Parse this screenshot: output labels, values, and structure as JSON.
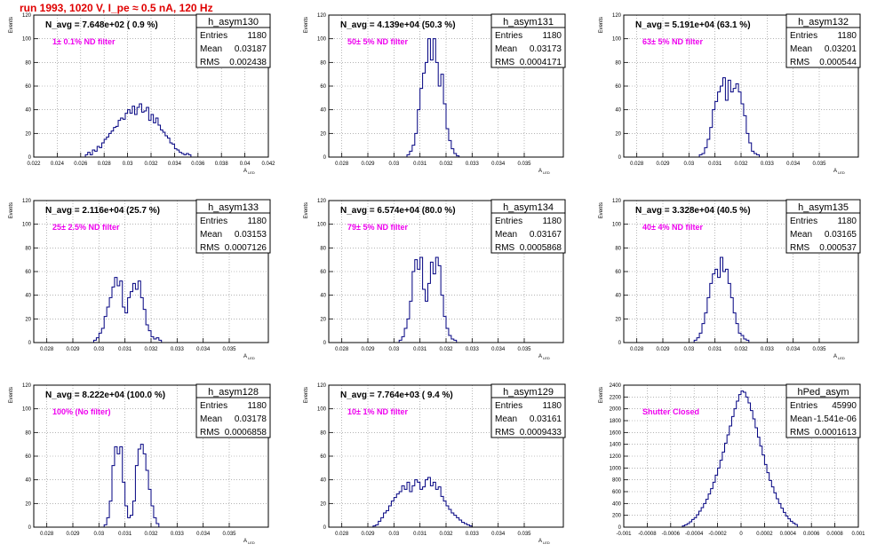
{
  "page": {
    "title": "run 1993,  1020 V, I_pe ≈ 0.5 nA, 120 Hz"
  },
  "colors": {
    "title": "#e00000",
    "histogram": "#000080",
    "annotation": "#ee00ee",
    "grid": "#888888"
  },
  "chart_data": [
    {
      "type": "histogram",
      "name": "h_asym130",
      "header": "N_avg = 7.648e+02 ( 0.9 %)",
      "note": "1± 0.1% ND filter",
      "stats": [
        [
          "Entries",
          "1180"
        ],
        [
          "Mean",
          "0.03187"
        ],
        [
          "RMS",
          "0.002438"
        ]
      ],
      "ylabel": "Events",
      "xlabel": "A_LED",
      "xlim": [
        0.022,
        0.042
      ],
      "ylim": [
        0,
        120
      ],
      "xticks": [
        0.022,
        0.024,
        0.026,
        0.028,
        0.03,
        0.032,
        0.034,
        0.036,
        0.038,
        0.04,
        0.042
      ],
      "xtick_labels": [
        "0.022",
        "0.024",
        "0.026",
        "0.028",
        "0.03",
        "0.032",
        "0.034",
        "0.036",
        "0.038",
        "0.04",
        "0.042"
      ],
      "yticks": [
        0,
        20,
        40,
        60,
        80,
        100,
        120
      ],
      "bin_start": 0.0264,
      "bin_width": 0.0002,
      "counts": [
        2,
        4,
        2,
        6,
        5,
        9,
        8,
        12,
        15,
        17,
        20,
        22,
        25,
        26,
        31,
        33,
        32,
        37,
        40,
        37,
        43,
        36,
        42,
        45,
        38,
        39,
        42,
        31,
        36,
        29,
        33,
        27,
        23,
        21,
        18,
        16,
        12,
        11,
        7,
        6,
        4,
        3,
        2,
        3,
        2
      ]
    },
    {
      "type": "histogram",
      "name": "h_asym131",
      "header": "N_avg = 4.139e+04 (50.3 %)",
      "note": "50± 5% ND filter",
      "stats": [
        [
          "Entries",
          "1180"
        ],
        [
          "Mean",
          "0.03173"
        ],
        [
          "RMS",
          "0.0004171"
        ]
      ],
      "ylabel": "Events",
      "xlabel": "A_LED",
      "xlim": [
        0.0275,
        0.0365
      ],
      "ylim": [
        0,
        120
      ],
      "xticks": [
        0.028,
        0.029,
        0.03,
        0.031,
        0.032,
        0.033,
        0.034,
        0.035
      ],
      "xtick_labels": [
        "0.028",
        "0.029",
        "0.03",
        "0.031",
        "0.032",
        "0.033",
        "0.034",
        "0.035"
      ],
      "yticks": [
        0,
        20,
        40,
        60,
        80,
        100,
        120
      ],
      "bin_start": 0.0305,
      "bin_width": 0.0001,
      "counts": [
        2,
        5,
        10,
        20,
        40,
        58,
        71,
        80,
        100,
        82,
        100,
        80,
        60,
        70,
        45,
        24,
        14,
        7,
        3,
        1
      ]
    },
    {
      "type": "histogram",
      "name": "h_asym132",
      "header": "N_avg = 5.191e+04 (63.1 %)",
      "note": "63± 5% ND filter",
      "stats": [
        [
          "Entries",
          "1180"
        ],
        [
          "Mean",
          "0.03201"
        ],
        [
          "RMS",
          "0.000544"
        ]
      ],
      "ylabel": "Events",
      "xlabel": "A_LED",
      "xlim": [
        0.0275,
        0.0365
      ],
      "ylim": [
        0,
        120
      ],
      "xticks": [
        0.028,
        0.029,
        0.03,
        0.031,
        0.032,
        0.033,
        0.034,
        0.035
      ],
      "xtick_labels": [
        "0.028",
        "0.029",
        "0.03",
        "0.031",
        "0.032",
        "0.033",
        "0.034",
        "0.035"
      ],
      "yticks": [
        0,
        20,
        40,
        60,
        80,
        100,
        120
      ],
      "bin_start": 0.0304,
      "bin_width": 0.0001,
      "counts": [
        2,
        3,
        8,
        15,
        25,
        40,
        47,
        55,
        60,
        67,
        48,
        65,
        55,
        58,
        62,
        55,
        45,
        35,
        20,
        12,
        5,
        3,
        2
      ]
    },
    {
      "type": "histogram",
      "name": "h_asym133",
      "header": "N_avg = 2.116e+04 (25.7 %)",
      "note": "25± 2.5% ND filter",
      "stats": [
        [
          "Entries",
          "1180"
        ],
        [
          "Mean",
          "0.03153"
        ],
        [
          "RMS",
          "0.0007126"
        ]
      ],
      "ylabel": "Events",
      "xlabel": "A_LED",
      "xlim": [
        0.0275,
        0.0365
      ],
      "ylim": [
        0,
        120
      ],
      "xticks": [
        0.028,
        0.029,
        0.03,
        0.031,
        0.032,
        0.033,
        0.034,
        0.035
      ],
      "xtick_labels": [
        "0.028",
        "0.029",
        "0.03",
        "0.031",
        "0.032",
        "0.033",
        "0.034",
        "0.035"
      ],
      "yticks": [
        0,
        20,
        40,
        60,
        80,
        100,
        120
      ],
      "bin_start": 0.0298,
      "bin_width": 0.0001,
      "counts": [
        2,
        4,
        8,
        12,
        22,
        30,
        38,
        47,
        55,
        48,
        52,
        30,
        25,
        38,
        43,
        50,
        45,
        52,
        38,
        28,
        15,
        10,
        5,
        3,
        4,
        2
      ]
    },
    {
      "type": "histogram",
      "name": "h_asym134",
      "header": "N_avg = 6.574e+04 (80.0 %)",
      "note": "79± 5% ND filter",
      "stats": [
        [
          "Entries",
          "1180"
        ],
        [
          "Mean",
          "0.03167"
        ],
        [
          "RMS",
          "0.0005868"
        ]
      ],
      "ylabel": "Events",
      "xlabel": "A_LED",
      "xlim": [
        0.0275,
        0.0365
      ],
      "ylim": [
        0,
        120
      ],
      "xticks": [
        0.028,
        0.029,
        0.03,
        0.031,
        0.032,
        0.033,
        0.034,
        0.035
      ],
      "xtick_labels": [
        "0.028",
        "0.029",
        "0.03",
        "0.031",
        "0.032",
        "0.033",
        "0.034",
        "0.035"
      ],
      "yticks": [
        0,
        20,
        40,
        60,
        80,
        100,
        120
      ],
      "bin_start": 0.0302,
      "bin_width": 0.0001,
      "counts": [
        2,
        5,
        12,
        20,
        35,
        60,
        70,
        62,
        72,
        45,
        35,
        50,
        68,
        58,
        72,
        65,
        40,
        22,
        12,
        6,
        3,
        2
      ]
    },
    {
      "type": "histogram",
      "name": "h_asym135",
      "header": "N_avg = 3.328e+04 (40.5 %)",
      "note": "40± 4% ND filter",
      "stats": [
        [
          "Entries",
          "1180"
        ],
        [
          "Mean",
          "0.03165"
        ],
        [
          "RMS",
          "0.000537"
        ]
      ],
      "ylabel": "Events",
      "xlabel": "A_LED",
      "xlim": [
        0.0275,
        0.0365
      ],
      "ylim": [
        0,
        120
      ],
      "xticks": [
        0.028,
        0.029,
        0.03,
        0.031,
        0.032,
        0.033,
        0.034,
        0.035
      ],
      "xtick_labels": [
        "0.028",
        "0.029",
        "0.03",
        "0.031",
        "0.032",
        "0.033",
        "0.034",
        "0.035"
      ],
      "yticks": [
        0,
        20,
        40,
        60,
        80,
        100,
        120
      ],
      "bin_start": 0.0302,
      "bin_width": 0.0001,
      "counts": [
        2,
        4,
        8,
        16,
        25,
        38,
        50,
        58,
        62,
        55,
        72,
        60,
        62,
        50,
        38,
        25,
        16,
        8,
        6,
        3,
        2
      ]
    },
    {
      "type": "histogram",
      "name": "h_asym128",
      "header": "N_avg = 8.222e+04 (100.0 %)",
      "note": "100% (No filter)",
      "stats": [
        [
          "Entries",
          "1180"
        ],
        [
          "Mean",
          "0.03178"
        ],
        [
          "RMS",
          "0.0006858"
        ]
      ],
      "ylabel": "Events",
      "xlabel": "A_LED",
      "xlim": [
        0.0275,
        0.0365
      ],
      "ylim": [
        0,
        120
      ],
      "xticks": [
        0.028,
        0.029,
        0.03,
        0.031,
        0.032,
        0.033,
        0.034,
        0.035
      ],
      "xtick_labels": [
        "0.028",
        "0.029",
        "0.03",
        "0.031",
        "0.032",
        "0.033",
        "0.034",
        "0.035"
      ],
      "yticks": [
        0,
        20,
        40,
        60,
        80,
        100,
        120
      ],
      "bin_start": 0.0302,
      "bin_width": 0.0001,
      "counts": [
        2,
        8,
        22,
        52,
        68,
        62,
        68,
        38,
        18,
        8,
        10,
        22,
        52,
        66,
        70,
        62,
        48,
        32,
        18,
        8,
        3
      ]
    },
    {
      "type": "histogram",
      "name": "h_asym129",
      "header": "N_avg = 7.764e+03 ( 9.4 %)",
      "note": "10± 1% ND filter",
      "stats": [
        [
          "Entries",
          "1180"
        ],
        [
          "Mean",
          "0.03161"
        ],
        [
          "RMS",
          "0.0009433"
        ]
      ],
      "ylabel": "Events",
      "xlabel": "A_LED",
      "xlim": [
        0.0275,
        0.0365
      ],
      "ylim": [
        0,
        120
      ],
      "xticks": [
        0.028,
        0.029,
        0.03,
        0.031,
        0.032,
        0.033,
        0.034,
        0.035
      ],
      "xtick_labels": [
        "0.028",
        "0.029",
        "0.03",
        "0.031",
        "0.032",
        "0.033",
        "0.034",
        "0.035"
      ],
      "yticks": [
        0,
        20,
        40,
        60,
        80,
        100,
        120
      ],
      "bin_start": 0.0292,
      "bin_width": 0.0001,
      "counts": [
        1,
        2,
        5,
        8,
        12,
        14,
        18,
        22,
        25,
        28,
        30,
        35,
        32,
        38,
        30,
        35,
        40,
        38,
        32,
        34,
        40,
        42,
        35,
        38,
        32,
        34,
        26,
        22,
        18,
        15,
        12,
        10,
        8,
        6,
        4,
        3,
        2,
        1
      ]
    },
    {
      "type": "histogram",
      "name": "hPed_asym",
      "header": "",
      "note": "Shutter Closed",
      "stats": [
        [
          "Entries",
          "45990"
        ],
        [
          "Mean",
          "-1.541e-06"
        ],
        [
          "RMS",
          "0.0001613"
        ]
      ],
      "ylabel": "Events",
      "xlabel": "",
      "xlim": [
        -0.001,
        0.001
      ],
      "ylim": [
        0,
        2400
      ],
      "xticks": [
        -0.001,
        -0.0008,
        -0.0006,
        -0.0004,
        -0.0002,
        0,
        0.0002,
        0.0004,
        0.0006,
        0.0008,
        0.001
      ],
      "xtick_labels": [
        "-0.001",
        "-0.0008",
        "-0.0006",
        "-0.0004",
        "-0.0002",
        "0",
        "0.0002",
        "0.0004",
        "0.0006",
        "0.0008",
        "0.001"
      ],
      "yticks": [
        0,
        200,
        400,
        600,
        800,
        1000,
        1200,
        1400,
        1600,
        1800,
        2000,
        2200,
        2400
      ],
      "bin_start": -0.0005,
      "bin_width": 2e-05,
      "counts": [
        20,
        40,
        60,
        90,
        130,
        160,
        210,
        270,
        330,
        400,
        470,
        560,
        650,
        760,
        880,
        1000,
        1130,
        1270,
        1420,
        1560,
        1710,
        1870,
        2000,
        2130,
        2240,
        2300,
        2280,
        2200,
        2100,
        1970,
        1830,
        1680,
        1520,
        1370,
        1220,
        1060,
        920,
        790,
        680,
        580,
        480,
        400,
        320,
        250,
        190,
        140,
        100,
        70,
        45
      ]
    }
  ]
}
